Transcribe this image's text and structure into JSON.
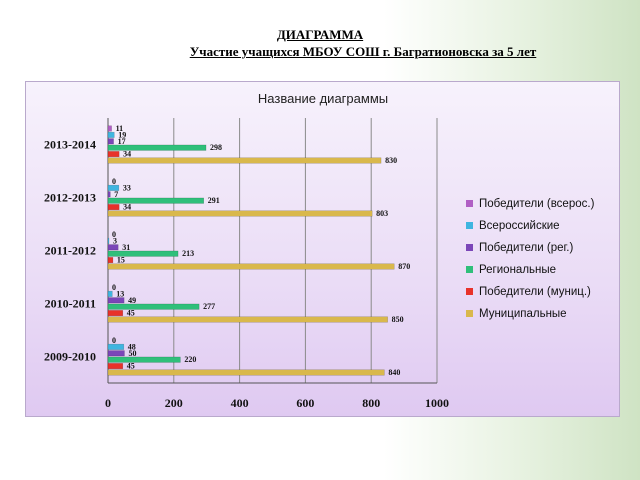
{
  "slide": {
    "title": "ДИАГРАММА",
    "subtitle": "Участие учащихся МБОУ СОШ г. Багратионовска за 5 лет"
  },
  "chart_data": {
    "type": "bar",
    "orientation": "horizontal",
    "title": "Название диаграммы",
    "categories": [
      "2013-2014",
      "2012-2013",
      "2011-2012",
      "2010-2011",
      "2009-2010"
    ],
    "series": [
      {
        "name": "Победители (всерос.)",
        "color": "#b05fc4",
        "values": [
          11,
          0,
          0,
          0,
          0
        ]
      },
      {
        "name": "Всероссийские",
        "color": "#3fb5e0",
        "values": [
          19,
          33,
          3,
          13,
          48
        ]
      },
      {
        "name": "Победители (рег.)",
        "color": "#7b46b8",
        "values": [
          17,
          7,
          31,
          49,
          50
        ]
      },
      {
        "name": "Региональные",
        "color": "#2fbf7a",
        "values": [
          298,
          291,
          213,
          277,
          220
        ]
      },
      {
        "name": "Победители (муниц.)",
        "color": "#e8322a",
        "values": [
          34,
          34,
          15,
          45,
          45
        ]
      },
      {
        "name": "Муниципальные",
        "color": "#d9b84c",
        "values": [
          830,
          803,
          870,
          850,
          840
        ]
      }
    ],
    "xlim": [
      0,
      1000
    ],
    "xticks": [
      "0",
      "200",
      "400",
      "600",
      "800",
      "1000"
    ],
    "legend_position": "right",
    "grid": true
  }
}
